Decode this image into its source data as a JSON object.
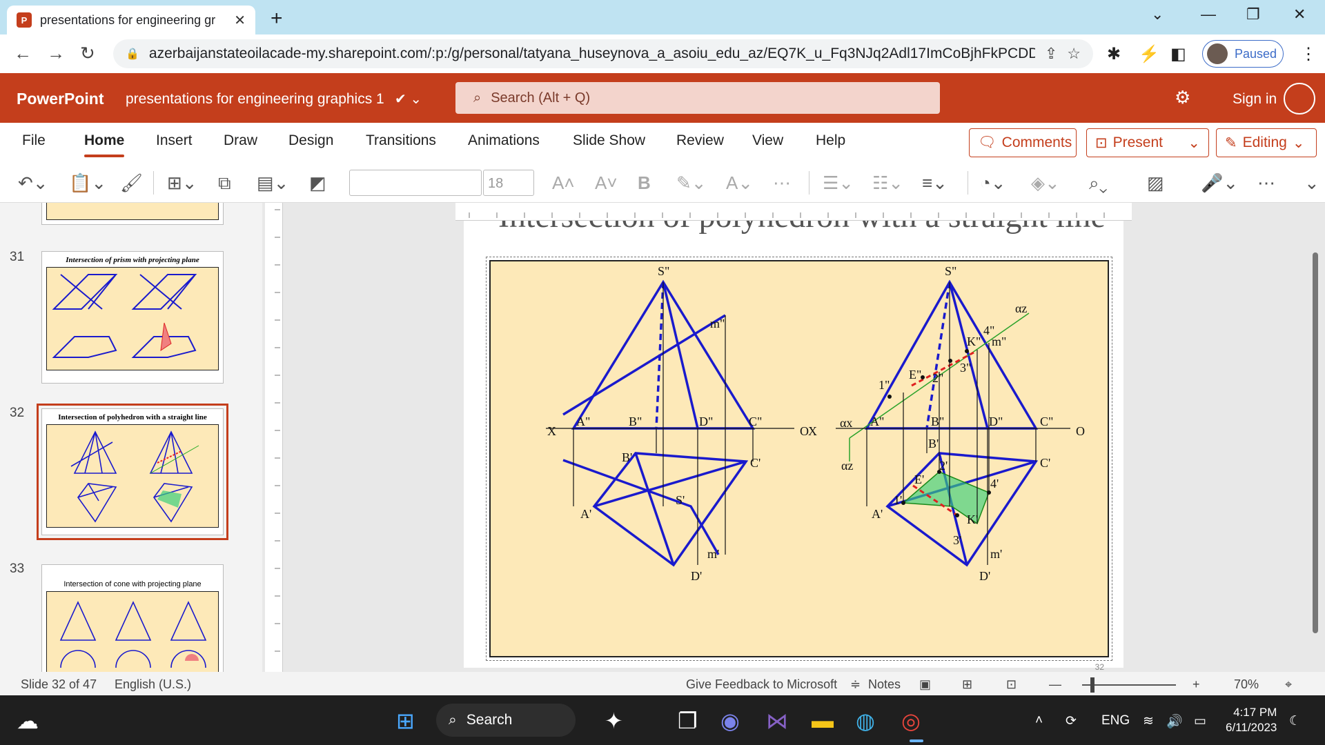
{
  "browser": {
    "tab_title": "presentations for engineering gr",
    "tab_favicon": "P",
    "url": "azerbaijanstateoilacade-my.sharepoint.com/:p:/g/personal/tatyana_huseynova_a_asoiu_edu_az/EQ7K_u_Fq3NJq2Adl17ImCoBjhFkPCDD...",
    "profile_label": "Paused"
  },
  "ppt": {
    "app_name": "PowerPoint",
    "doc_title": "presentations for engineering graphics 1",
    "search_placeholder": "Search (Alt + Q)",
    "sign_in": "Sign in",
    "tabs": [
      "File",
      "Home",
      "Insert",
      "Draw",
      "Design",
      "Transitions",
      "Animations",
      "Slide Show",
      "Review",
      "View",
      "Help"
    ],
    "active_tab": "Home",
    "comments_label": "Comments",
    "present_label": "Present",
    "editing_label": "Editing",
    "font_size": "18"
  },
  "thumbnails": [
    {
      "number": "31",
      "title": "Intersection of prism with projecting plane"
    },
    {
      "number": "32",
      "title": "Intersection of polyhedron with a straight line"
    },
    {
      "number": "33",
      "title": "Intersection of cone with projecting plane"
    }
  ],
  "slide": {
    "title": "Intersection of polyhedron with a straight line",
    "number": "32"
  },
  "status": {
    "slide_info": "Slide 32 of 47",
    "language": "English (U.S.)",
    "feedback": "Give Feedback to Microsoft",
    "notes": "Notes",
    "zoom": "70%"
  },
  "taskbar": {
    "search": "Search",
    "lang": "ENG",
    "time": "4:17 PM",
    "date": "6/11/2023"
  },
  "colors": {
    "ppt_accent": "#c43e1c",
    "slide_bg": "#fde9b8",
    "line_blue": "#1a1acd"
  }
}
